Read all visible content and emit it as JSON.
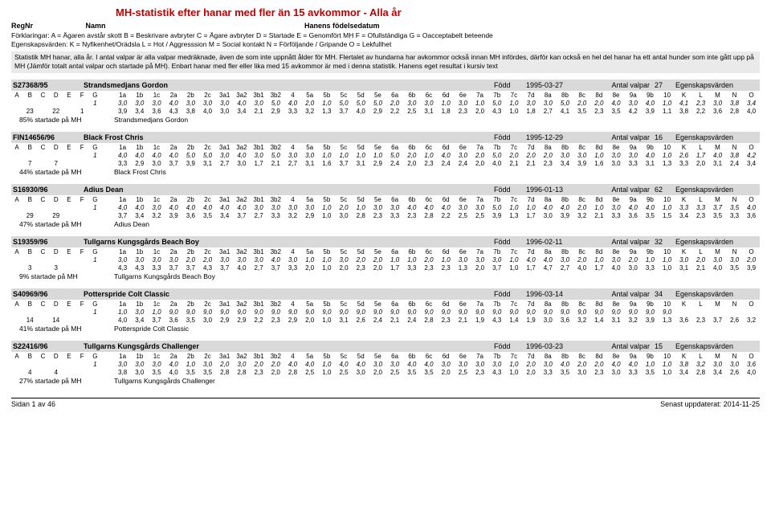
{
  "title": "MH-statistik efter hanar med fler än 15 avkommor - Alla år",
  "header": {
    "regnr": "RegNr",
    "namn": "Namn",
    "fdl": "Hanens födelsedatum"
  },
  "legend": {
    "line1": "Förklaringar:    A = Ägaren avstår skott      B = Beskrivare avbryter      C = Ägare avbryter      D = Startade       E = Genomfört MH      F = Ofullständiga       G = Oacceptabelt beteende",
    "line2": "Egenskapsvärden:     K = Nyfikenhet/Orädsla              L = Hot / Aggresssion           M = Social kontakt             N = Förföljande / Gripande          O = Lekfullhet"
  },
  "stat_note": "Statistik MH hanar, alla år. I antal valpar är alla valpar medräknade, även de som inte uppnått ålder för MH. Flertalet av hundarna har avkommor också innan MH infördes, därför kan också en hel del hanar ha ett antal hunder som inte gått upp på MH (Jämför totalt antal valpar och startade på MH). Enbart hanar med fler eller lika med 15 avkommor är med i denna statistik. Hanens eget resultat i kursiv text",
  "col_lead": [
    "A",
    "B",
    "C",
    "D",
    "E",
    "F",
    "G"
  ],
  "cols": [
    "1a",
    "1b",
    "1c",
    "2a",
    "2b",
    "2c",
    "3a1",
    "3a2",
    "3b1",
    "3b2",
    "4",
    "5a",
    "5b",
    "5c",
    "5d",
    "5e",
    "6a",
    "6b",
    "6c",
    "6d",
    "6e",
    "7a",
    "7b",
    "7c",
    "7d",
    "8a",
    "8b",
    "8c",
    "8d",
    "8e",
    "9a",
    "9b",
    "10"
  ],
  "tail": [
    "K",
    "L",
    "M",
    "N",
    "O"
  ],
  "born_label": "Född",
  "av_label": "Antal valpar",
  "eg_label": "Egenskapsvärden",
  "dogs": [
    {
      "reg": "S27368/95",
      "name": "Strandsmedjans Gordon",
      "born": "1995-03-27",
      "valpar": "27",
      "rows": [
        {
          "lead": [
            "",
            "",
            "",
            "",
            "",
            "",
            "1"
          ],
          "italic": true,
          "vals": [
            "3,0",
            "3,0",
            "3,0",
            "4,0",
            "3,0",
            "3,0",
            "3,0",
            "4,0",
            "3,0",
            "5,0",
            "4,0",
            "2,0",
            "1,0",
            "5,0",
            "5,0",
            "5,0",
            "2,0",
            "3,0",
            "3,0",
            "1,0",
            "3,0",
            "1,0",
            "5,0",
            "1,0",
            "3,0",
            "3,0",
            "5,0",
            "2,0",
            "2,0",
            "4,0",
            "3,0",
            "4,0",
            "1,0"
          ],
          "tail": [
            "4,1",
            "2,3",
            "3,0",
            "3,8",
            "3,4"
          ]
        },
        {
          "lead": [
            "",
            "23",
            "",
            "22",
            "",
            "1",
            ""
          ],
          "italic": false,
          "vals": [
            "3,9",
            "3,4",
            "3,6",
            "4,3",
            "3,8",
            "4,0",
            "3,0",
            "3,4",
            "2,1",
            "2,9",
            "3,3",
            "3,2",
            "1,3",
            "3,7",
            "4,0",
            "2,9",
            "2,2",
            "2,5",
            "3,1",
            "1,8",
            "2,3",
            "2,0",
            "4,3",
            "1,0",
            "1,8",
            "2,7",
            "4,1",
            "3,5",
            "2,3",
            "3,5",
            "4,2",
            "3,9",
            "1,1"
          ],
          "tail": [
            "3,8",
            "2,2",
            "3,6",
            "2,8",
            "4,0"
          ]
        }
      ],
      "pct": "85% startade på MH"
    },
    {
      "reg": "FIN14656/96",
      "name": "Black Frost Chris",
      "born": "1995-12-29",
      "valpar": "16",
      "rows": [
        {
          "lead": [
            "",
            "",
            "",
            "",
            "",
            "",
            "1"
          ],
          "italic": true,
          "vals": [
            "4,0",
            "4,0",
            "4,0",
            "4,0",
            "5,0",
            "5,0",
            "3,0",
            "4,0",
            "3,0",
            "5,0",
            "3,0",
            "3,0",
            "1,0",
            "1,0",
            "1,0",
            "1,0",
            "5,0",
            "2,0",
            "1,0",
            "4,0",
            "3,0",
            "2,0",
            "5,0",
            "2,0",
            "2,0",
            "2,0",
            "3,0",
            "3,0",
            "1,0",
            "3,0",
            "3,0",
            "4,0",
            "1,0"
          ],
          "tail": [
            "2,6",
            "1,7",
            "4,0",
            "3,8",
            "4,2"
          ]
        },
        {
          "lead": [
            "",
            "7",
            "",
            "7",
            "",
            "",
            ""
          ],
          "italic": false,
          "vals": [
            "3,3",
            "2,9",
            "3,0",
            "3,7",
            "3,9",
            "3,1",
            "2,7",
            "3,0",
            "1,7",
            "2,1",
            "2,7",
            "3,1",
            "1,6",
            "3,7",
            "3,1",
            "2,9",
            "2,4",
            "2,0",
            "2,3",
            "2,4",
            "2,4",
            "2,0",
            "4,0",
            "2,1",
            "2,1",
            "2,3",
            "3,4",
            "3,9",
            "1,6",
            "3,0",
            "3,3",
            "3,1",
            "1,3"
          ],
          "tail": [
            "3,3",
            "2,0",
            "3,1",
            "2,4",
            "3,4"
          ]
        }
      ],
      "pct": "44% startade på MH"
    },
    {
      "reg": "S16930/96",
      "name": "Adius Dean",
      "born": "1996-01-13",
      "valpar": "62",
      "rows": [
        {
          "lead": [
            "",
            "",
            "",
            "",
            "",
            "",
            "1"
          ],
          "italic": true,
          "vals": [
            "4,0",
            "4,0",
            "3,0",
            "4,0",
            "4,0",
            "4,0",
            "4,0",
            "4,0",
            "3,0",
            "3,0",
            "3,0",
            "3,0",
            "1,0",
            "2,0",
            "1,0",
            "3,0",
            "3,0",
            "4,0",
            "4,0",
            "4,0",
            "3,0",
            "3,0",
            "5,0",
            "1,0",
            "1,0",
            "4,0",
            "4,0",
            "2,0",
            "1,0",
            "3,0",
            "4,0",
            "4,0",
            "1,0"
          ],
          "tail": [
            "3,3",
            "3,3",
            "3,7",
            "3,5",
            "4,0"
          ]
        },
        {
          "lead": [
            "",
            "29",
            "",
            "29",
            "",
            "",
            ""
          ],
          "italic": false,
          "vals": [
            "3,7",
            "3,4",
            "3,2",
            "3,9",
            "3,6",
            "3,5",
            "3,4",
            "3,7",
            "2,7",
            "3,3",
            "3,2",
            "2,9",
            "1,0",
            "3,0",
            "2,8",
            "2,3",
            "3,3",
            "2,3",
            "2,8",
            "2,2",
            "2,5",
            "2,5",
            "3,9",
            "1,3",
            "1,7",
            "3,0",
            "3,9",
            "3,2",
            "2,1",
            "3,3",
            "3,6",
            "3,5",
            "1,5"
          ],
          "tail": [
            "3,4",
            "2,3",
            "3,5",
            "3,3",
            "3,6"
          ]
        }
      ],
      "pct": "47% startade på MH"
    },
    {
      "reg": "S19359/96",
      "name": "Tullgarns Kungsgårds Beach Boy",
      "born": "1996-02-11",
      "valpar": "32",
      "rows": [
        {
          "lead": [
            "",
            "",
            "",
            "",
            "",
            "",
            "1"
          ],
          "italic": true,
          "vals": [
            "3,0",
            "3,0",
            "3,0",
            "3,0",
            "2,0",
            "2,0",
            "3,0",
            "3,0",
            "3,0",
            "4,0",
            "3,0",
            "1,0",
            "1,0",
            "3,0",
            "2,0",
            "2,0",
            "1,0",
            "1,0",
            "2,0",
            "1,0",
            "3,0",
            "3,0",
            "3,0",
            "1,0",
            "4,0",
            "4,0",
            "3,0",
            "2,0",
            "1,0",
            "3,0",
            "2,0",
            "1,0",
            "1,0"
          ],
          "tail": [
            "3,0",
            "2,0",
            "3,0",
            "3,0",
            "2,0"
          ]
        },
        {
          "lead": [
            "",
            "3",
            "",
            "3",
            "",
            "",
            ""
          ],
          "italic": false,
          "vals": [
            "4,3",
            "4,3",
            "3,3",
            "3,7",
            "3,7",
            "4,3",
            "3,7",
            "4,0",
            "2,7",
            "3,7",
            "3,3",
            "2,0",
            "1,0",
            "2,0",
            "2,3",
            "2,0",
            "1,7",
            "3,3",
            "2,3",
            "2,3",
            "1,3",
            "2,0",
            "3,7",
            "1,0",
            "1,7",
            "4,7",
            "2,7",
            "4,0",
            "1,7",
            "4,0",
            "3,0",
            "3,3",
            "1,0"
          ],
          "tail": [
            "3,1",
            "2,1",
            "4,0",
            "3,5",
            "3,9"
          ]
        }
      ],
      "pct": "9% startade på MH"
    },
    {
      "reg": "S40969/96",
      "name": "Potterspride Colt Classic",
      "born": "1996-03-14",
      "valpar": "34",
      "rows": [
        {
          "lead": [
            "",
            "",
            "",
            "",
            "",
            "",
            "1"
          ],
          "italic": true,
          "vals": [
            "1,0",
            "3,0",
            "1,0",
            "9,0",
            "9,0",
            "9,0",
            "9,0",
            "9,0",
            "9,0",
            "9,0",
            "9,0",
            "9,0",
            "9,0",
            "9,0",
            "9,0",
            "9,0",
            "9,0",
            "9,0",
            "9,0",
            "9,0",
            "9,0",
            "9,0",
            "9,0",
            "9,0",
            "9,0",
            "9,0",
            "9,0",
            "9,0",
            "9,0",
            "9,0",
            "9,0",
            "9,0",
            "9,0"
          ],
          "tail": [
            "",
            "",
            "",
            "",
            ""
          ]
        },
        {
          "lead": [
            "",
            "14",
            "",
            "14",
            "",
            "",
            ""
          ],
          "italic": false,
          "vals": [
            "4,0",
            "3,4",
            "3,7",
            "3,6",
            "3,5",
            "3,0",
            "2,9",
            "2,9",
            "2,2",
            "2,3",
            "2,9",
            "2,0",
            "1,0",
            "3,1",
            "2,6",
            "2,4",
            "2,1",
            "2,4",
            "2,8",
            "2,3",
            "2,1",
            "1,9",
            "4,3",
            "1,4",
            "1,9",
            "3,0",
            "3,6",
            "3,2",
            "1,4",
            "3,1",
            "3,2",
            "3,9",
            "1,3"
          ],
          "tail": [
            "3,6",
            "2,3",
            "3,7",
            "2,6",
            "3,2"
          ]
        }
      ],
      "pct": "41% startade på MH"
    },
    {
      "reg": "S22416/96",
      "name": "Tullgarns Kungsgårds Challenger",
      "born": "1996-03-23",
      "valpar": "15",
      "rows": [
        {
          "lead": [
            "",
            "",
            "",
            "",
            "",
            "",
            "1"
          ],
          "italic": true,
          "vals": [
            "3,0",
            "3,0",
            "3,0",
            "4,0",
            "1,0",
            "3,0",
            "2,0",
            "3,0",
            "2,0",
            "2,0",
            "4,0",
            "4,0",
            "1,0",
            "4,0",
            "4,0",
            "3,0",
            "3,0",
            "4,0",
            "4,0",
            "3,0",
            "3,0",
            "3,0",
            "3,0",
            "1,0",
            "2,0",
            "3,0",
            "4,0",
            "2,0",
            "2,0",
            "4,0",
            "4,0",
            "1,0",
            "1,0"
          ],
          "tail": [
            "3,8",
            "3,2",
            "3,0",
            "3,0",
            "3,6"
          ]
        },
        {
          "lead": [
            "",
            "4",
            "",
            "4",
            "",
            "",
            ""
          ],
          "italic": false,
          "vals": [
            "3,8",
            "3,0",
            "3,5",
            "4,0",
            "3,5",
            "3,5",
            "2,8",
            "2,8",
            "2,3",
            "2,0",
            "2,8",
            "2,5",
            "1,0",
            "2,5",
            "3,0",
            "2,0",
            "2,5",
            "3,5",
            "3,5",
            "2,0",
            "2,5",
            "2,3",
            "4,3",
            "1,0",
            "2,0",
            "3,3",
            "3,5",
            "3,0",
            "2,3",
            "3,0",
            "3,3",
            "3,5",
            "1,0"
          ],
          "tail": [
            "3,4",
            "2,8",
            "3,4",
            "2,6",
            "4,0"
          ]
        }
      ],
      "pct": "27% startade på MH"
    }
  ],
  "footer": {
    "left": "Sidan 1 av 46",
    "right": "Senast uppdaterat: 2014-11-25"
  }
}
